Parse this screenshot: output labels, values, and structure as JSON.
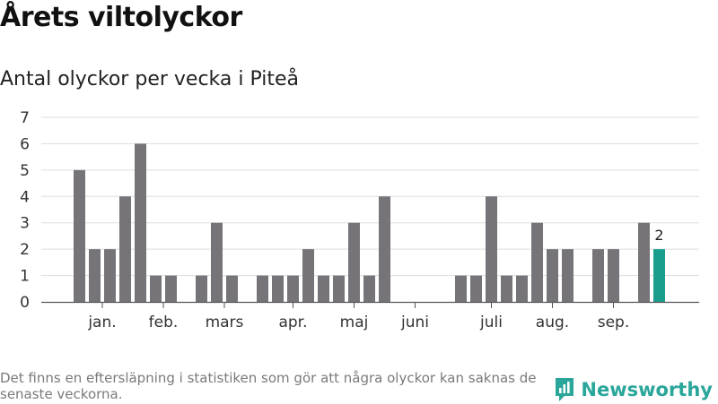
{
  "header": {
    "title": "Årets viltolyckor",
    "subtitle": "Antal olyckor per vecka i Piteå"
  },
  "footer": {
    "note": "Det finns en eftersläpning i statistiken som gör att några olyckor kan saknas de senaste veckorna.",
    "brand": "Newsworthy"
  },
  "colors": {
    "bar": "#767479",
    "highlight": "#199e8e",
    "grid": "#dddddd",
    "axis": "#555555",
    "brand": "#2aa69a"
  },
  "chart_data": {
    "type": "bar",
    "ylim": [
      0,
      7
    ],
    "yticks": [
      0,
      1,
      2,
      3,
      4,
      5,
      6,
      7
    ],
    "week_slots": 40,
    "month_labels": [
      {
        "label": "jan.",
        "week": 1.5
      },
      {
        "label": "feb.",
        "week": 5.5
      },
      {
        "label": "mars",
        "week": 9.5
      },
      {
        "label": "apr.",
        "week": 14
      },
      {
        "label": "maj",
        "week": 18
      },
      {
        "label": "juni",
        "week": 22
      },
      {
        "label": "juli",
        "week": 27
      },
      {
        "label": "aug.",
        "week": 31
      },
      {
        "label": "sep.",
        "week": 35
      }
    ],
    "values": [
      5,
      2,
      2,
      4,
      6,
      1,
      1,
      0,
      1,
      3,
      1,
      0,
      1,
      1,
      1,
      2,
      1,
      1,
      3,
      1,
      4,
      0,
      0,
      0,
      0,
      1,
      1,
      4,
      1,
      1,
      3,
      2,
      2,
      0,
      2,
      2,
      0,
      3,
      2
    ],
    "highlight_index": 38,
    "highlight_label": "2"
  }
}
